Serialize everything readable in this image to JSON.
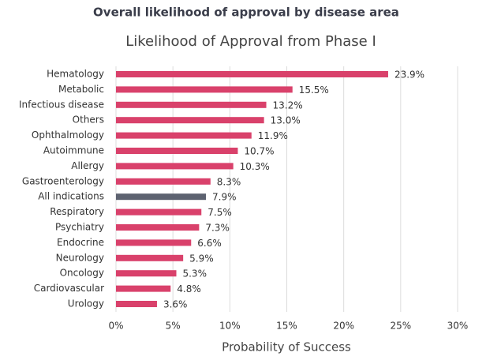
{
  "chart_data": {
    "type": "hbar",
    "suptitle": "Overall likelihood of approval by disease area",
    "title": "Likelihood of Approval from Phase I",
    "x_label": "Probability of Success",
    "categories": [
      "Hematology",
      "Metabolic",
      "Infectious disease",
      "Others",
      "Ophthalmology",
      "Autoimmune",
      "Allergy",
      "Gastroenterology",
      "All indications",
      "Respiratory",
      "Psychiatry",
      "Endocrine",
      "Neurology",
      "Oncology",
      "Cardiovascular",
      "Urology"
    ],
    "values": [
      23.9,
      15.5,
      13.2,
      13.0,
      11.9,
      10.7,
      10.3,
      8.3,
      7.9,
      7.5,
      7.3,
      6.6,
      5.9,
      5.3,
      4.8,
      3.6
    ],
    "value_labels": [
      "23.9%",
      "15.5%",
      "13.2%",
      "13.0%",
      "11.9%",
      "10.7%",
      "10.3%",
      "8.3%",
      "7.9%",
      "7.5%",
      "7.3%",
      "6.6%",
      "5.9%",
      "5.3%",
      "4.8%",
      "3.6%"
    ],
    "colors": [
      "#d9416b",
      "#d9416b",
      "#d9416b",
      "#d9416b",
      "#d9416b",
      "#d9416b",
      "#d9416b",
      "#d9416b",
      "#5d6270",
      "#d9416b",
      "#d9416b",
      "#d9416b",
      "#d9416b",
      "#d9416b",
      "#d9416b",
      "#d9416b"
    ],
    "xlim": [
      0,
      30
    ],
    "xticks": [
      {
        "value": 0,
        "label": "0%"
      },
      {
        "value": 5,
        "label": "5%"
      },
      {
        "value": 10,
        "label": "10%"
      },
      {
        "value": 15,
        "label": "15%"
      },
      {
        "value": 20,
        "label": "20%"
      },
      {
        "value": 25,
        "label": "25%"
      },
      {
        "value": 30,
        "label": "30%"
      }
    ],
    "grid": true
  }
}
